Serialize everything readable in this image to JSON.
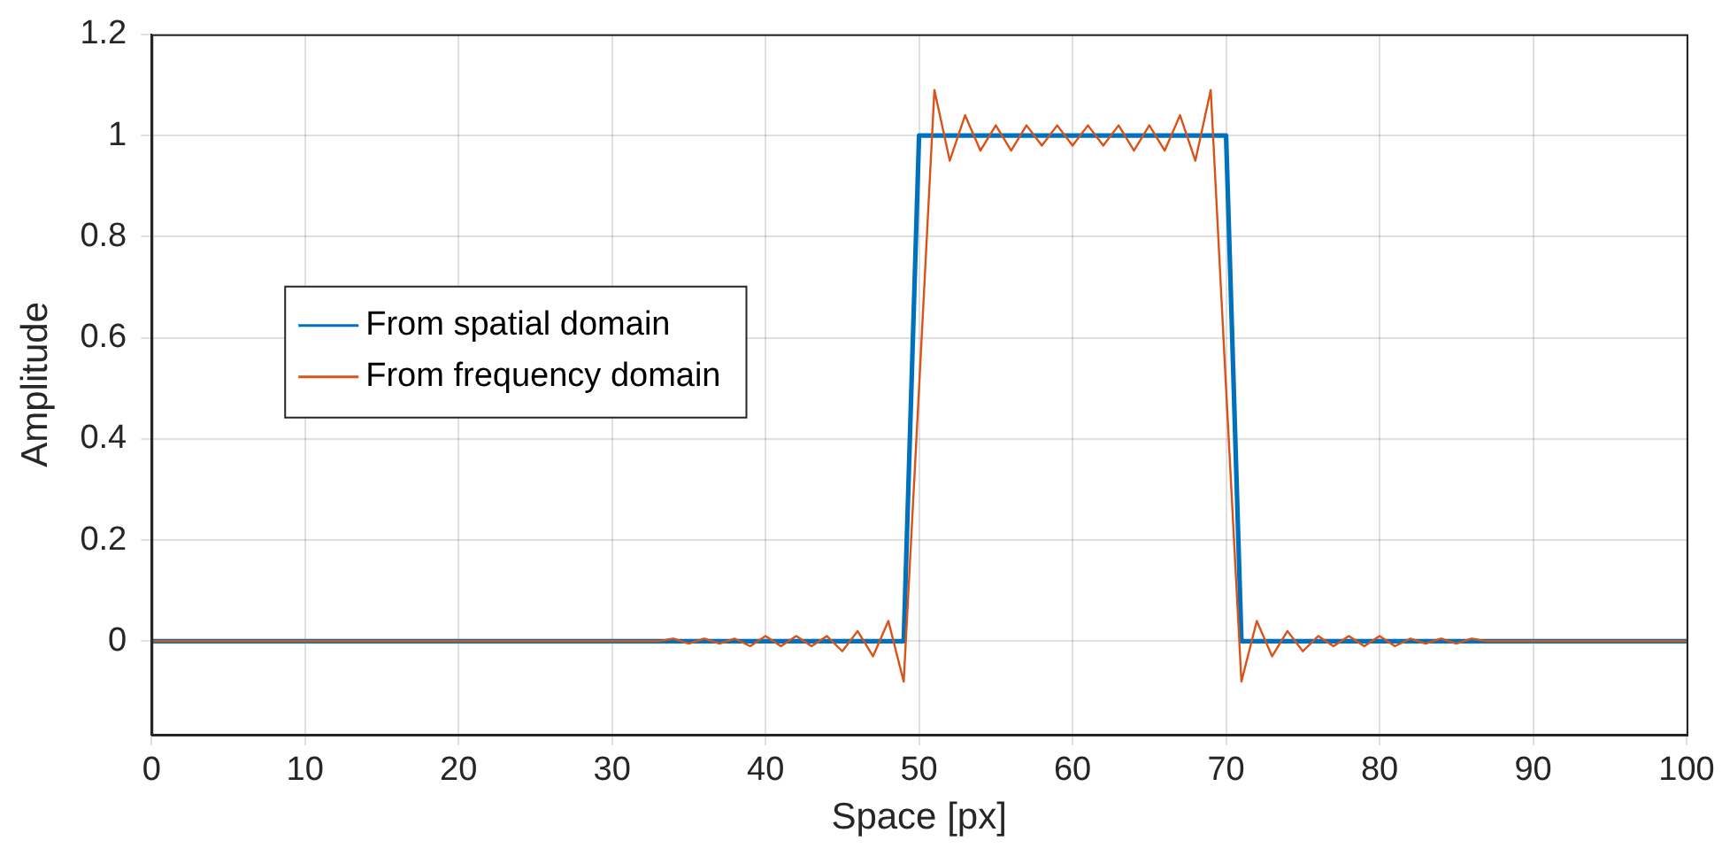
{
  "chart_data": {
    "type": "line",
    "xlabel": "Space [px]",
    "ylabel": "Amplitude",
    "xlim": [
      0,
      100
    ],
    "xticks": [
      0,
      10,
      20,
      30,
      40,
      50,
      60,
      70,
      80,
      90,
      100
    ],
    "ylim": [
      -0.185,
      1.2
    ],
    "yticks": [
      0,
      0.2,
      0.4,
      0.6,
      0.8,
      1,
      1.2
    ],
    "grid": true,
    "legend": "left",
    "marker": "none",
    "line_style": "solid",
    "series": [
      {
        "name": "From spatial domain",
        "color": "#0072bd",
        "x": [
          0,
          49,
          50,
          70,
          71,
          100
        ],
        "values": [
          0,
          0,
          1,
          1,
          0,
          0
        ]
      },
      {
        "name": "From frequency domain",
        "color": "#d95319",
        "x": [
          0,
          1,
          2,
          3,
          4,
          5,
          6,
          7,
          8,
          9,
          10,
          11,
          12,
          13,
          14,
          15,
          16,
          17,
          18,
          19,
          20,
          21,
          22,
          23,
          24,
          25,
          26,
          27,
          28,
          29,
          30,
          31,
          32,
          33,
          34,
          35,
          36,
          37,
          38,
          39,
          40,
          41,
          42,
          43,
          44,
          45,
          46,
          47,
          48,
          49,
          50,
          51,
          52,
          53,
          54,
          55,
          56,
          57,
          58,
          59,
          60,
          61,
          62,
          63,
          64,
          65,
          66,
          67,
          68,
          69,
          70,
          71,
          72,
          73,
          74,
          75,
          76,
          77,
          78,
          79,
          80,
          81,
          82,
          83,
          84,
          85,
          86,
          87,
          88,
          89,
          90,
          91,
          92,
          93,
          94,
          95,
          96,
          97,
          98,
          99,
          100
        ],
        "values": [
          0,
          0,
          0,
          0,
          0,
          0,
          0,
          0,
          0,
          0,
          0,
          0,
          0,
          0,
          0,
          0,
          0,
          0,
          0,
          0,
          0,
          0,
          0,
          0,
          0,
          0,
          0,
          0,
          0,
          0,
          0,
          0,
          0,
          0,
          0.005,
          -0.005,
          0.005,
          -0.005,
          0.005,
          -0.01,
          0.01,
          -0.01,
          0.01,
          -0.01,
          0.01,
          -0.02,
          0.02,
          -0.03,
          0.04,
          -0.08,
          0.5,
          1.09,
          0.95,
          1.04,
          0.97,
          1.02,
          0.97,
          1.02,
          0.98,
          1.02,
          0.98,
          1.02,
          0.98,
          1.02,
          0.97,
          1.02,
          0.97,
          1.04,
          0.95,
          1.09,
          0.5,
          -0.08,
          0.04,
          -0.03,
          0.02,
          -0.02,
          0.01,
          -0.01,
          0.01,
          -0.01,
          0.01,
          -0.01,
          0.005,
          -0.005,
          0.005,
          -0.005,
          0.005,
          0,
          0,
          0,
          0,
          0,
          0,
          0,
          0,
          0,
          0,
          0,
          0,
          0,
          0
        ]
      }
    ]
  }
}
